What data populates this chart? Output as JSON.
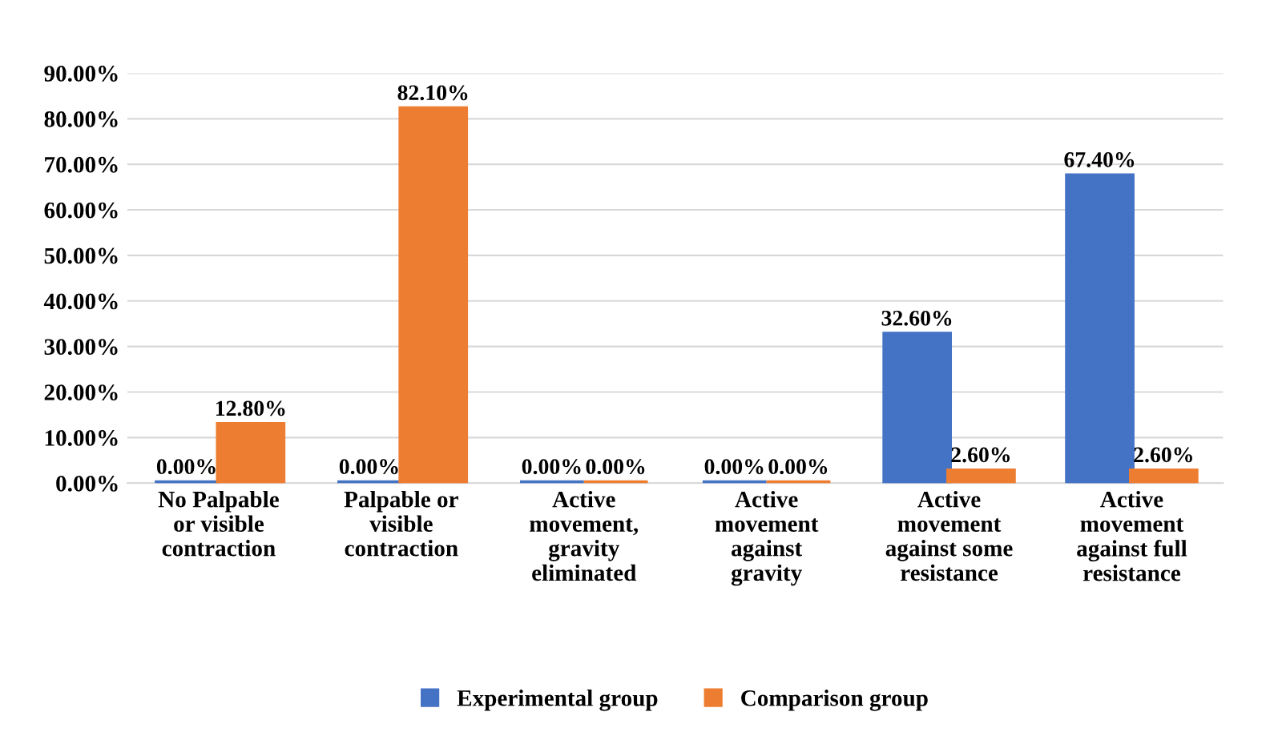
{
  "chart_data": {
    "type": "bar",
    "categories": [
      "No Palpable\nor visible\ncontraction",
      "Palpable or\nvisible\ncontraction",
      "Active\nmovement,\ngravity\neliminated",
      "Active\nmovement\nagainst\ngravity",
      "Active\nmovement\nagainst some\nresistance",
      "Active\nmovement\nagainst full\nresistance"
    ],
    "series": [
      {
        "name": "Experimental group",
        "color": "#4472c4",
        "values": [
          0,
          0,
          0,
          0,
          32.6,
          67.4
        ],
        "value_labels": [
          "0.00%",
          "0.00%",
          "0.00%",
          "0.00%",
          "32.60%",
          "67.40%"
        ]
      },
      {
        "name": "Comparison group",
        "color": "#ed7d31",
        "values": [
          12.8,
          82.1,
          0,
          0,
          2.6,
          2.6
        ],
        "value_labels": [
          "12.80%",
          "82.10%",
          "0.00%",
          "0.00%",
          "2.60%",
          "2.60%"
        ]
      }
    ],
    "ylim": [
      0,
      90
    ],
    "yticks": [
      {
        "value": 0,
        "label": "0.00%"
      },
      {
        "value": 10,
        "label": "10.00%"
      },
      {
        "value": 20,
        "label": "20.00%"
      },
      {
        "value": 30,
        "label": "30.00%"
      },
      {
        "value": 40,
        "label": "40.00%"
      },
      {
        "value": 50,
        "label": "50.00%"
      },
      {
        "value": 60,
        "label": "60.00%"
      },
      {
        "value": 70,
        "label": "70.00%"
      },
      {
        "value": 80,
        "label": "80.00%"
      },
      {
        "value": 90,
        "label": "90.00%"
      }
    ],
    "grid": "y",
    "legend": "bottom"
  }
}
